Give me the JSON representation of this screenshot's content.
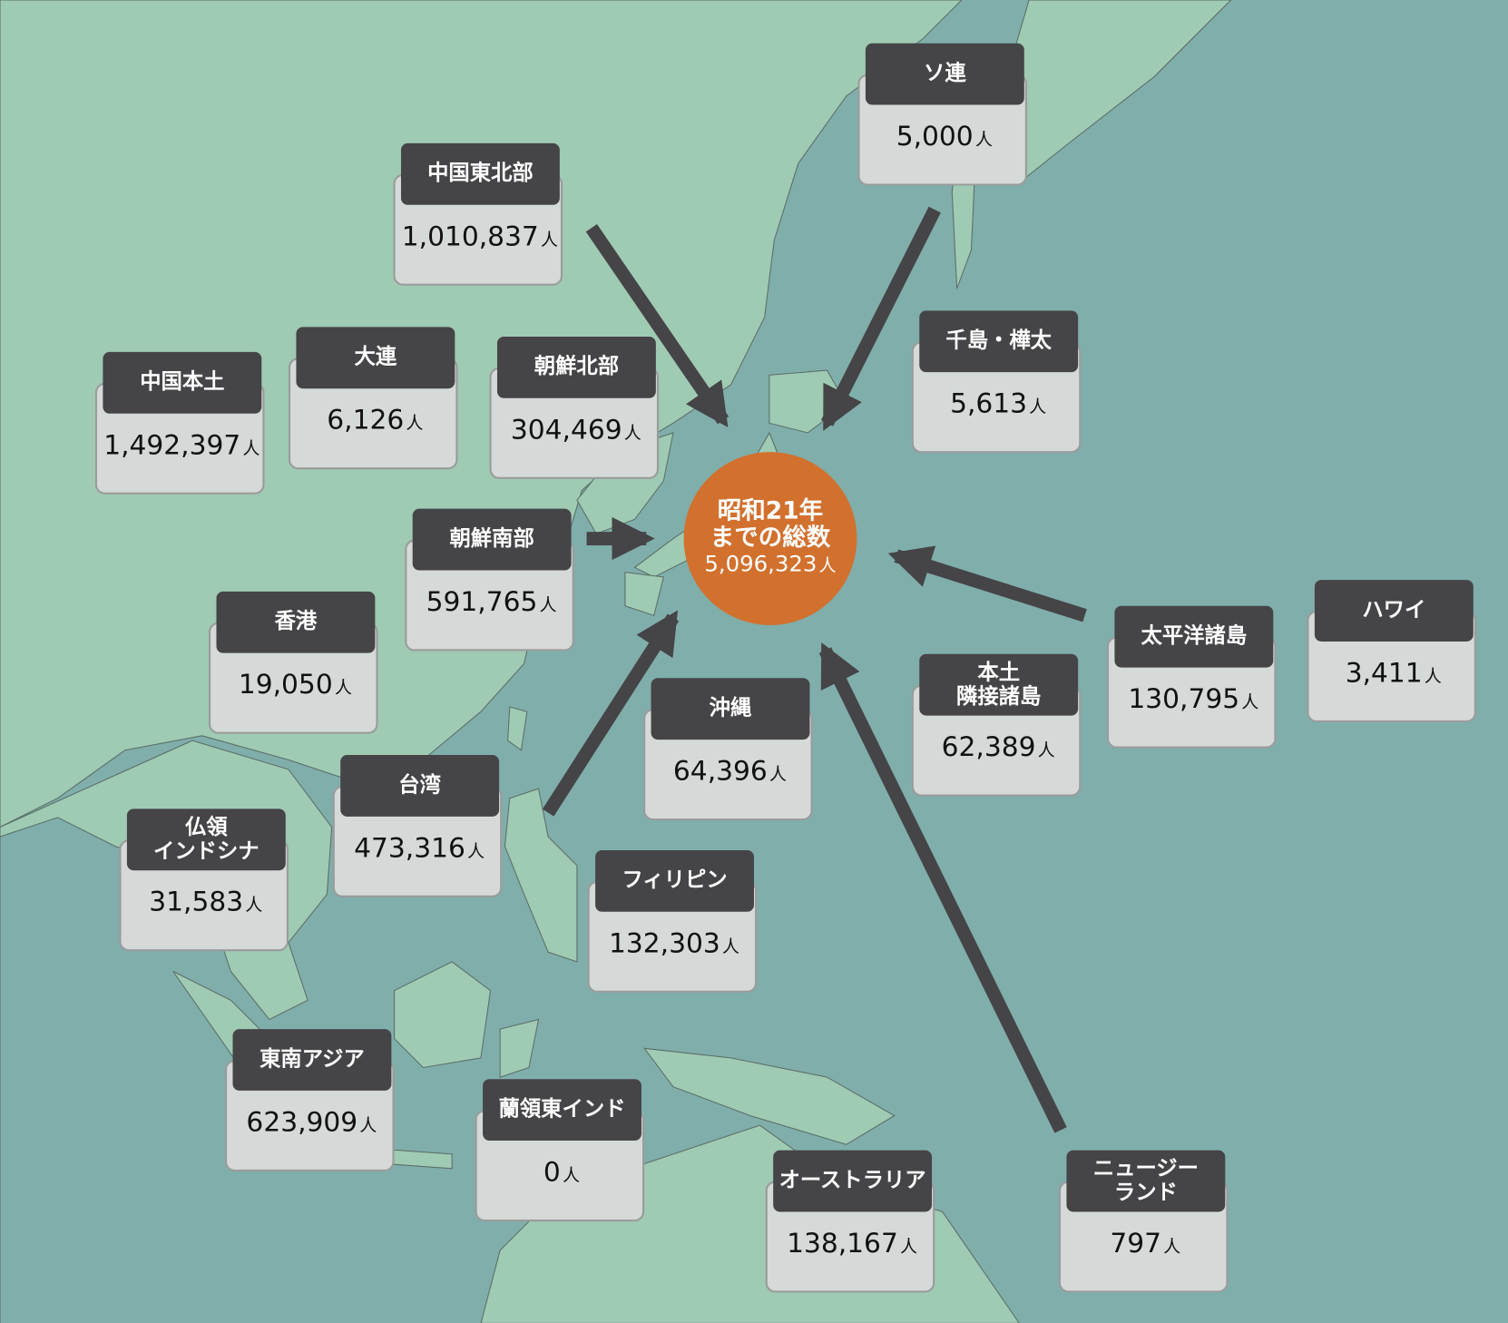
{
  "colors": {
    "sea": "#80aeab",
    "land": "#9fcab3",
    "label_bg": "#454447",
    "card_bg": "#d5dad8",
    "center": "#d2702e",
    "arrow": "#454447"
  },
  "center": {
    "line1": "昭和21年",
    "line2": "までの総数",
    "total": "5,096,323",
    "unit": "人"
  },
  "unit": "人",
  "regions": [
    {
      "name": "ソ連",
      "value": "5,000"
    },
    {
      "name": "中国東北部",
      "value": "1,010,837"
    },
    {
      "name": "千島・樺太",
      "value": "5,613"
    },
    {
      "name": "中国本土",
      "value": "1,492,397"
    },
    {
      "name": "大連",
      "value": "6,126"
    },
    {
      "name": "朝鮮北部",
      "value": "304,469"
    },
    {
      "name": "朝鮮南部",
      "value": "591,765"
    },
    {
      "name": "香港",
      "value": "19,050"
    },
    {
      "name": "沖縄",
      "value": "64,396"
    },
    {
      "name": "本土\n隣接諸島",
      "value": "62,389"
    },
    {
      "name": "太平洋諸島",
      "value": "130,795"
    },
    {
      "name": "ハワイ",
      "value": "3,411"
    },
    {
      "name": "台湾",
      "value": "473,316"
    },
    {
      "name": "仏領\nインドシナ",
      "value": "31,583"
    },
    {
      "name": "フィリピン",
      "value": "132,303"
    },
    {
      "name": "東南アジア",
      "value": "623,909"
    },
    {
      "name": "蘭領東インド",
      "value": "0"
    },
    {
      "name": "オーストラリア",
      "value": "138,167"
    },
    {
      "name": "ニュージー\nランド",
      "value": "797"
    }
  ]
}
